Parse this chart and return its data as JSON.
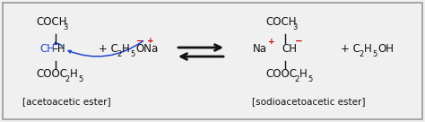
{
  "bg_color": "#f0f0f0",
  "border_color": "#999999",
  "text_color": "#111111",
  "blue_color": "#2244cc",
  "red_color": "#cc0000",
  "arrow_color": "#111111",
  "fs_main": 8.5,
  "fs_sub": 6.0,
  "fs_label": 7.5,
  "fs_sign": 6.5,
  "left_top": "COCH",
  "left_top_sub": "3",
  "left_mid_blue": "CH",
  "left_mid_dash": "–H",
  "left_bot": "COOC",
  "left_bot_sub1": "2",
  "left_bot_h": "H",
  "left_bot_sub2": "5",
  "left_label": "[acetoacetic ester]",
  "reagent_plus": "+ C",
  "reagent_sub1": "2",
  "reagent_h": "H",
  "reagent_sub2": "5",
  "reagent_ona": "ONa",
  "reagent_minus": "−",
  "reagent_charge_plus": "+",
  "right_top": "COCH",
  "right_top_sub": "3",
  "right_na": "Na",
  "right_na_charge": "+",
  "right_ch": "CH",
  "right_ch_charge": "−",
  "right_bot": "COOC",
  "right_bot_sub1": "2",
  "right_bot_h": "H",
  "right_bot_sub2": "5",
  "right_label": "[sodioacetoacetic ester]",
  "prod_plus": "+ C",
  "prod_sub1": "2",
  "prod_h": "H",
  "prod_sub2": "5",
  "prod_oh": "OH"
}
